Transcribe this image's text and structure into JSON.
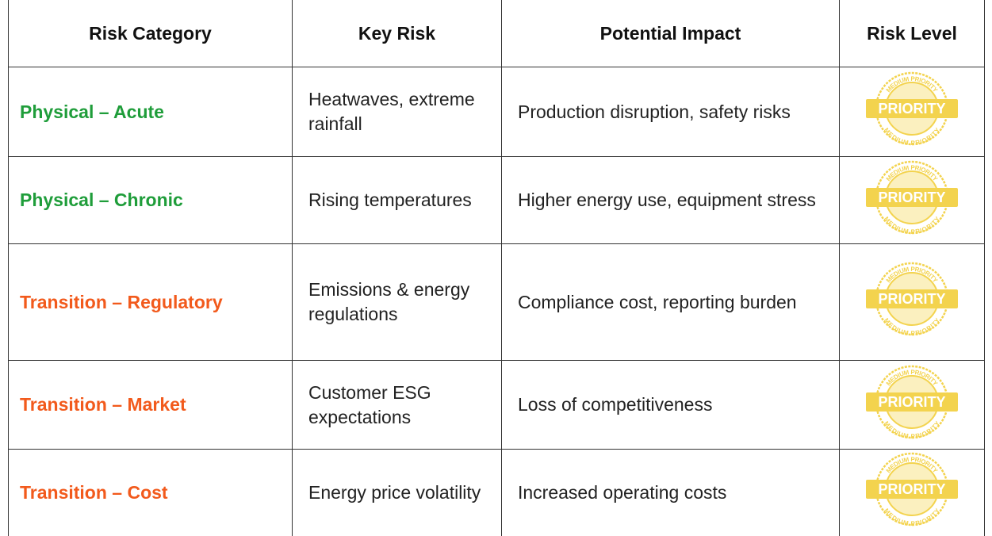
{
  "table": {
    "header": [
      "Risk Category",
      "Key Risk",
      "Potential Impact",
      "Risk Level"
    ],
    "rows": [
      {
        "category": "Physical – Acute",
        "color": "#1f9d3a",
        "key_risk": "Heatwaves, extreme rainfall",
        "impact": "Production disruption, safety risks",
        "level": {
          "label": "PRIORITY",
          "ring": "MEDIUM PRIORITY"
        }
      },
      {
        "category": "Physical – Chronic",
        "color": "#1f9d3a",
        "key_risk": "Rising temperatures",
        "impact": "Higher energy use, equipment stress",
        "level": {
          "label": "PRIORITY",
          "ring": "MEDIUM PRIORITY"
        }
      },
      {
        "category": "Transition – Regulatory",
        "color": "#f25a1c",
        "key_risk": "Emissions & energy regulations",
        "impact": "Compliance cost, reporting burden",
        "level": {
          "label": "PRIORITY",
          "ring": "MEDIUM PRIORITY"
        }
      },
      {
        "category": "Transition – Market",
        "color": "#f25a1c",
        "key_risk": "Customer ESG expectations",
        "impact": "Loss of competitiveness",
        "level": {
          "label": "PRIORITY",
          "ring": "MEDIUM PRIORITY"
        }
      },
      {
        "category": "Transition – Cost",
        "color": "#f25a1c",
        "key_risk": "Energy price volatility",
        "impact": "Increased operating costs",
        "level": {
          "label": "PRIORITY",
          "ring": "MEDIUM PRIORITY"
        }
      }
    ]
  }
}
